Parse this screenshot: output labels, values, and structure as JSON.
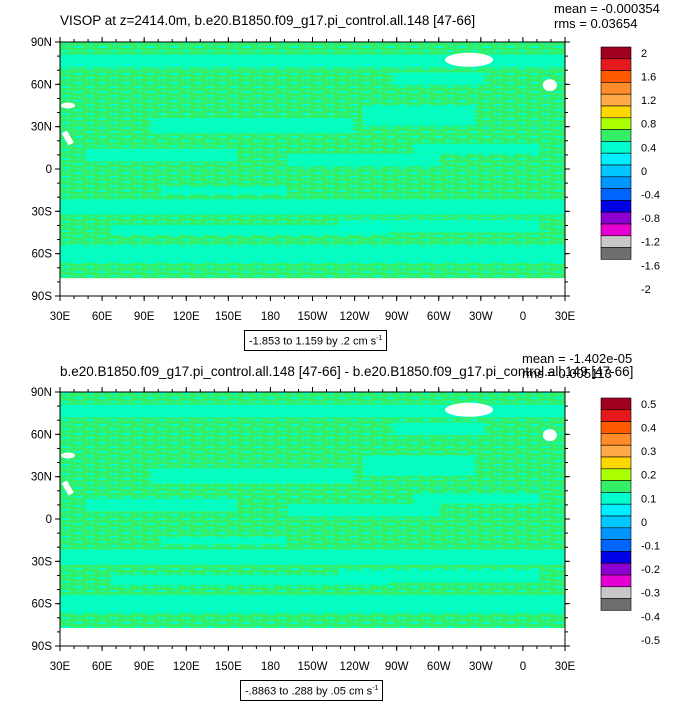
{
  "chart_data": [
    {
      "type": "heatmap",
      "title": "VISOP at z=2414.0m, b.e20.B1850.f09_g17.pi_control.all.148 [47-66]",
      "stats": {
        "mean": "mean = -0.000354",
        "rms": "rms = 0.03654"
      },
      "contour_info": "-1.853 to 1.159 by .2 cm s",
      "contour_unit_exp": "-1",
      "x_tick_labels": [
        "30E",
        "60E",
        "90E",
        "120E",
        "150E",
        "180",
        "150W",
        "120W",
        "90W",
        "60W",
        "30W",
        "0",
        "30E"
      ],
      "y_tick_labels": [
        "90N",
        "60N",
        "30N",
        "0",
        "30S",
        "60S",
        "90S"
      ],
      "colorbar_labels": [
        "2",
        "1.6",
        "1.2",
        "0.8",
        "0.4",
        "0",
        "-0.4",
        "-0.8",
        "-1.2",
        "-1.6",
        "-2"
      ],
      "dominant_level_color": "#33ee66",
      "secondary_level_color": "#00ffcc"
    },
    {
      "type": "heatmap",
      "title": "b.e20.B1850.f09_g17.pi_control.all.148 [47-66] - b.e20.B1850.f09_g17.pi_control.all.149 [47-66]",
      "stats": {
        "mean": "mean = -1.402e-05",
        "rms": "rms = 0.005113"
      },
      "contour_info": "-.8863 to .288 by .05 cm s",
      "contour_unit_exp": "-1",
      "x_tick_labels": [
        "30E",
        "60E",
        "90E",
        "120E",
        "150E",
        "180",
        "150W",
        "120W",
        "90W",
        "60W",
        "30W",
        "0",
        "30E"
      ],
      "y_tick_labels": [
        "90N",
        "60N",
        "30N",
        "0",
        "30S",
        "60S",
        "90S"
      ],
      "colorbar_labels": [
        "0.5",
        "0.4",
        "0.3",
        "0.2",
        "0.1",
        "0",
        "-0.1",
        "-0.2",
        "-0.3",
        "-0.4",
        "-0.5"
      ],
      "dominant_level_color": "#33ee66",
      "secondary_level_color": "#00ffcc"
    }
  ],
  "colorbar_colors": [
    "#a0001e",
    "#e61a1a",
    "#ff5a00",
    "#ff8c28",
    "#ffaa46",
    "#ffd700",
    "#aaff00",
    "#33ee66",
    "#00ffcc",
    "#00f0ff",
    "#00c8ff",
    "#0096ff",
    "#0064ff",
    "#0000e6",
    "#8c00d2",
    "#e600d2",
    "#c8c8c8",
    "#6e6e6e"
  ]
}
